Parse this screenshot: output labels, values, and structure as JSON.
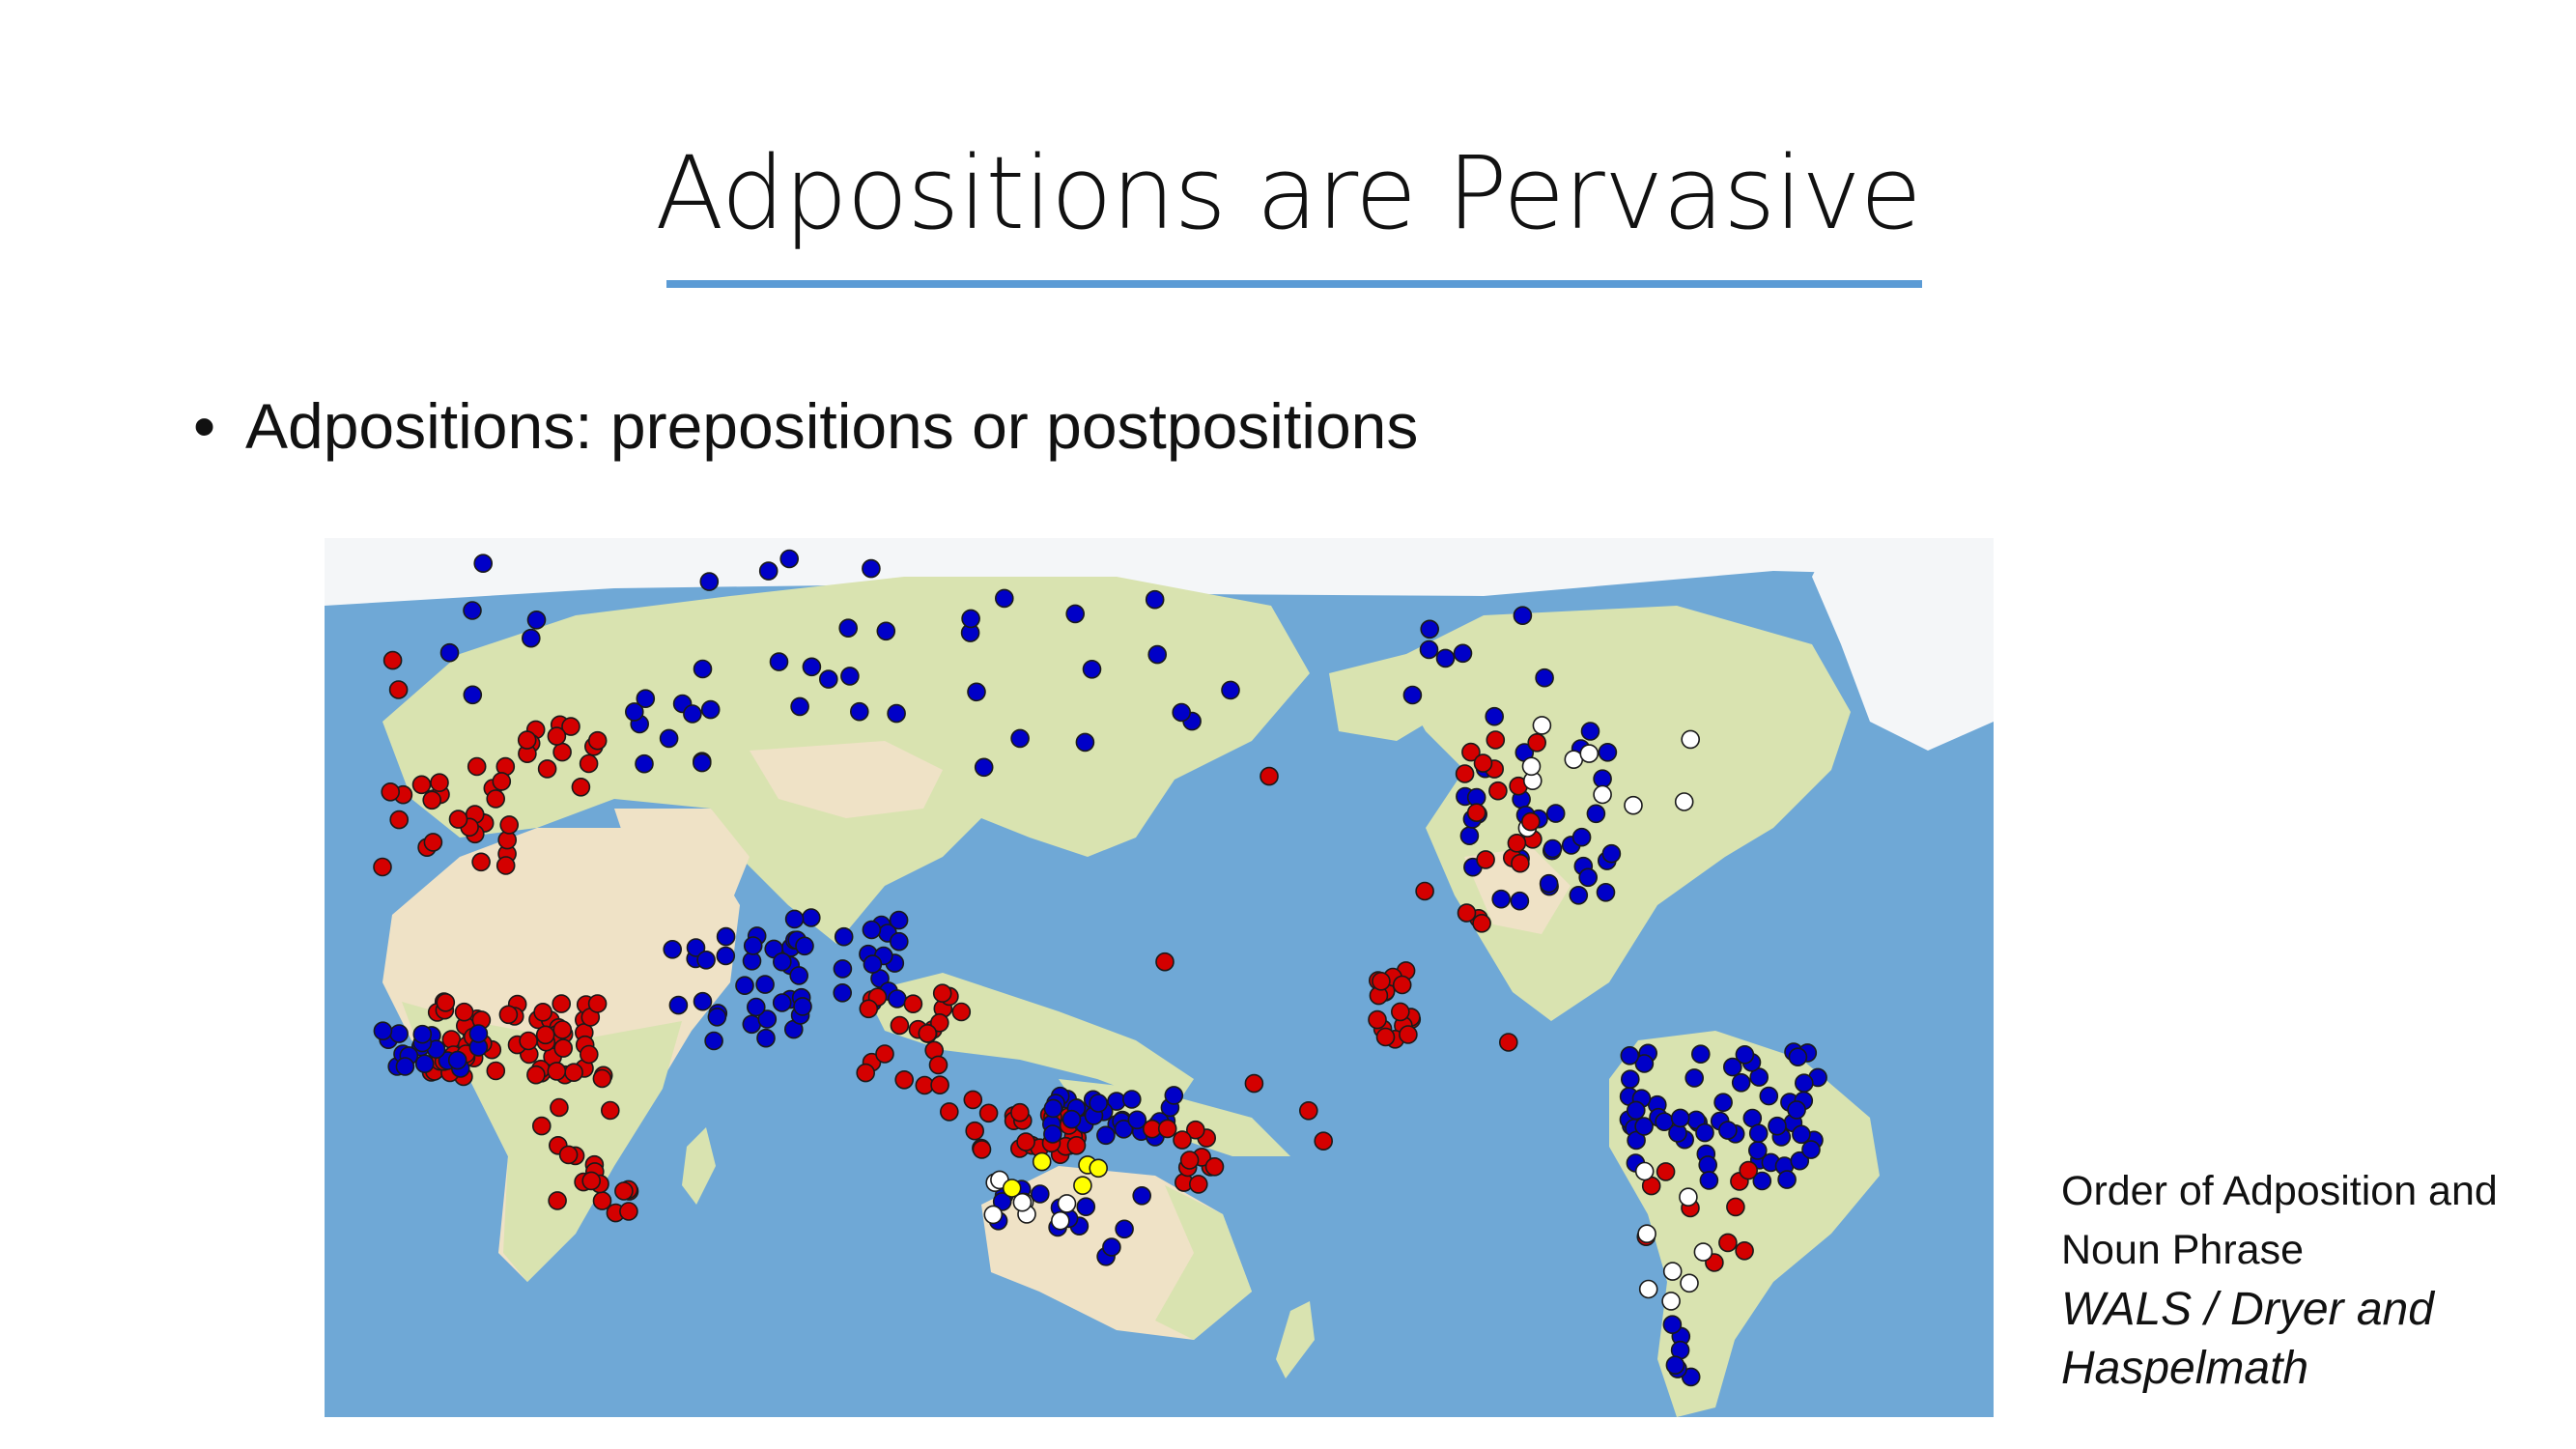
{
  "slide": {
    "title": "Adpositions are Pervasive",
    "bullet_char": "•",
    "bullet": "Adpositions: prepositions or postpositions"
  },
  "map": {
    "colors": {
      "ocean": "#6fa8d6",
      "land": "#d9e3b0",
      "desert": "#efe2c6",
      "ice": "#f4f6f8",
      "prepositions": "#d40000",
      "postpositions": "#0000c8",
      "other": "#ffffff",
      "inpositions": "#ffff00"
    }
  },
  "caption": {
    "line1": "Order of Adposition and",
    "line2": "Noun Phrase",
    "cite1": "WALS / Dryer and",
    "cite2": "Haspelmath"
  }
}
